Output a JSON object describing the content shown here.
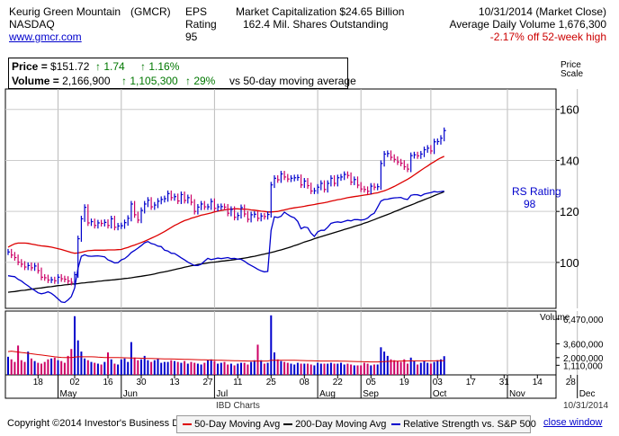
{
  "header": {
    "company": "Keurig Green Mountain",
    "ticker": "(GMCR)",
    "exchange": "NASDAQ",
    "website": "www.gmcr.com",
    "eps_label": "EPS",
    "eps_rating_label": "Rating",
    "eps_rating_value": "95",
    "market_cap": "Market Capitalization $24.65 Billion",
    "shares": "162.4 Mil. Shares Outstanding",
    "date": "10/31/2014 (Market Close)",
    "avg_volume": "Average Daily Volume 1,676,300",
    "off_high": "-2.17% off 52-week high"
  },
  "quote": {
    "price_label": "Price = ",
    "price_value": "$151.72",
    "price_change": "↑ 1.74",
    "price_pct": "↑ 1.16%",
    "volume_label": "Volume = ",
    "volume_value": "2,166,900",
    "volume_change": "↑ 1,105,300",
    "volume_pct": "↑ 29%",
    "volume_note": "vs 50-day moving average"
  },
  "footer": {
    "source": "IBD Charts",
    "date": "10/31/2014",
    "copyright": "Copyright ©2014 Investor's Business Daily",
    "legend": [
      {
        "label": "50-Day Moving Avg",
        "color": "#dd0000"
      },
      {
        "label": "200-Day Moving Avg",
        "color": "#000000"
      },
      {
        "label": "Relative Strength vs. S&P 500",
        "color": "#0000cc"
      }
    ],
    "close_label": "close window"
  },
  "chart_data": {
    "type": "line",
    "title": "",
    "price_axis_label": [
      "Price",
      "Scale"
    ],
    "volume_axis_label": "Volume",
    "rs_label": "RS Rating",
    "rs_value": "98",
    "y_ticks": [
      100,
      120,
      140,
      160
    ],
    "ylim": [
      82,
      168
    ],
    "volume_ticks": [
      "6,470,000",
      "3,600,000",
      "2,000,000",
      "1,110,000"
    ],
    "volume_tick_values": [
      6470000,
      3600000,
      2000000,
      1110000
    ],
    "volume_max": 7400000,
    "x_labels": [
      {
        "label": "18",
        "month": "",
        "i": 9
      },
      {
        "label": "May",
        "month": "May",
        "i": 15
      },
      {
        "label": "02",
        "month": "",
        "i": 20
      },
      {
        "label": "16",
        "month": "",
        "i": 30
      },
      {
        "label": "Jun",
        "month": "Jun",
        "i": 34
      },
      {
        "label": "30",
        "month": "",
        "i": 40
      },
      {
        "label": "13",
        "month": "",
        "i": 50
      },
      {
        "label": "27",
        "month": "",
        "i": 60
      },
      {
        "label": "Jul",
        "month": "Jul",
        "i": 62
      },
      {
        "label": "11",
        "month": "",
        "i": 69
      },
      {
        "label": "25",
        "month": "",
        "i": 79
      },
      {
        "label": "08",
        "month": "",
        "i": 89
      },
      {
        "label": "Aug",
        "month": "Aug",
        "i": 93
      },
      {
        "label": "22",
        "month": "",
        "i": 99
      },
      {
        "label": "Sep",
        "month": "Sep",
        "i": 106
      },
      {
        "label": "05",
        "month": "",
        "i": 109
      },
      {
        "label": "19",
        "month": "",
        "i": 119
      },
      {
        "label": "Oct",
        "month": "Oct",
        "i": 127
      },
      {
        "label": "03",
        "month": "",
        "i": 129
      },
      {
        "label": "17",
        "month": "",
        "i": 139
      },
      {
        "label": "31",
        "month": "",
        "i": 149
      },
      {
        "label": "Nov",
        "month": "Nov",
        "i": 150
      },
      {
        "label": "14",
        "month": "",
        "i": 159
      },
      {
        "label": "28",
        "month": "",
        "i": 169
      },
      {
        "label": "Dec",
        "month": "Dec",
        "i": 171
      }
    ],
    "close": [
      104.1,
      102.9,
      101.9,
      100.1,
      99.3,
      98.2,
      98.8,
      97.9,
      98.6,
      96.8,
      94.2,
      94.0,
      93.1,
      93.2,
      92.8,
      94.2,
      93.6,
      93.4,
      92.7,
      92.2,
      95.2,
      109.3,
      117.1,
      121.6,
      115.5,
      116.0,
      114.5,
      115.5,
      115.3,
      115.7,
      114.5,
      117.1,
      113.8,
      114.3,
      114.4,
      115.6,
      117.3,
      122.9,
      118.7,
      116.6,
      120.4,
      122.9,
      124.4,
      121.8,
      122.5,
      124.0,
      124.7,
      125.0,
      127.0,
      125.4,
      125.8,
      124.1,
      126.6,
      124.3,
      125.4,
      123.6,
      120.0,
      121.7,
      122.9,
      121.8,
      121.8,
      123.9,
      121.2,
      121.8,
      121.9,
      121.7,
      119.3,
      120.8,
      117.7,
      118.4,
      121.5,
      119.0,
      116.9,
      118.7,
      118.9,
      117.3,
      118.2,
      118.0,
      118.8,
      130.4,
      133.0,
      132.4,
      134.7,
      133.5,
      132.7,
      133.0,
      133.2,
      133.3,
      130.4,
      131.9,
      130.1,
      128.0,
      128.1,
      129.5,
      131.0,
      128.6,
      131.0,
      133.0,
      131.0,
      133.2,
      133.5,
      134.5,
      134.1,
      131.5,
      132.5,
      130.3,
      128.8,
      128.6,
      127.9,
      129.9,
      129.5,
      129.7,
      138.8,
      142.5,
      142.7,
      141.2,
      140.4,
      139.4,
      138.9,
      137.5,
      136.6,
      141.9,
      142.2,
      141.8,
      142.5,
      144.2,
      144.8,
      143.7,
      147.3,
      147.4,
      148.7,
      151.7
    ],
    "ma50": [
      106.0,
      106.7,
      107.3,
      107.6,
      107.6,
      107.6,
      107.5,
      107.2,
      107.0,
      106.7,
      106.5,
      106.4,
      106.2,
      106.0,
      105.7,
      105.4,
      105.1,
      104.7,
      104.3,
      103.9,
      103.6,
      103.7,
      104.0,
      104.3,
      104.6,
      104.7,
      104.8,
      104.8,
      104.8,
      104.8,
      104.9,
      104.9,
      104.9,
      105.0,
      105.1,
      105.5,
      105.9,
      106.4,
      106.8,
      107.3,
      107.8,
      108.3,
      108.9,
      109.5,
      110.1,
      110.7,
      111.4,
      112.1,
      112.9,
      113.7,
      114.5,
      115.1,
      115.8,
      116.4,
      116.8,
      117.3,
      117.7,
      118.1,
      118.5,
      118.8,
      119.1,
      119.4,
      119.8,
      120.1,
      120.4,
      120.6,
      120.8,
      120.9,
      121.0,
      121.0,
      120.9,
      120.9,
      120.8,
      120.6,
      120.5,
      120.3,
      120.1,
      120.0,
      119.8,
      119.8,
      119.9,
      120.0,
      120.3,
      120.6,
      120.9,
      121.2,
      121.4,
      121.6,
      121.8,
      122.0,
      122.3,
      122.5,
      122.7,
      123.0,
      123.2,
      123.4,
      123.7,
      124.0,
      124.3,
      124.6,
      124.8,
      125.1,
      125.4,
      125.6,
      125.8,
      126.0,
      126.2,
      126.4,
      126.6,
      126.8,
      127.1,
      127.3,
      127.7,
      128.1,
      128.6,
      129.2,
      129.8,
      130.5,
      131.2,
      131.9,
      132.6,
      133.4,
      134.3,
      135.2,
      136.1,
      137.0,
      137.8,
      138.7,
      139.5,
      140.3,
      141.0,
      141.6
    ],
    "ma200": [
      88.3,
      88.5,
      88.6,
      88.8,
      89.0,
      89.1,
      89.3,
      89.5,
      89.7,
      89.9,
      90.0,
      90.2,
      90.4,
      90.5,
      90.7,
      90.9,
      91.0,
      91.2,
      91.3,
      91.5,
      91.6,
      91.7,
      91.9,
      92.0,
      92.2,
      92.3,
      92.4,
      92.6,
      92.7,
      92.9,
      93.0,
      93.1,
      93.2,
      93.4,
      93.5,
      93.7,
      93.8,
      94.0,
      94.2,
      94.4,
      94.6,
      94.8,
      95.0,
      95.2,
      95.5,
      95.8,
      96.1,
      96.3,
      96.6,
      96.9,
      97.2,
      97.5,
      97.8,
      98.1,
      98.4,
      98.7,
      98.9,
      99.2,
      99.4,
      99.6,
      99.8,
      100.0,
      100.1,
      100.3,
      100.5,
      100.6,
      100.8,
      100.9,
      101.1,
      101.3,
      101.5,
      101.7,
      101.9,
      102.2,
      102.4,
      102.7,
      103.0,
      103.3,
      103.6,
      103.9,
      104.2,
      104.6,
      104.9,
      105.3,
      105.7,
      106.1,
      106.6,
      107.0,
      107.5,
      108.0,
      108.4,
      108.8,
      109.3,
      109.7,
      110.1,
      110.5,
      110.9,
      111.3,
      111.7,
      112.1,
      112.5,
      112.9,
      113.3,
      113.7,
      114.1,
      114.5,
      114.9,
      115.4,
      115.8,
      116.3,
      116.8,
      117.3,
      117.8,
      118.3,
      118.8,
      119.3,
      119.9,
      120.4,
      120.9,
      121.5,
      122.0,
      122.5,
      123.0,
      123.6,
      124.1,
      124.6,
      125.1,
      125.6,
      126.2,
      126.7,
      127.2,
      127.7
    ],
    "rs": [
      94.8,
      94.6,
      94.4,
      93.4,
      92.7,
      91.7,
      90.8,
      89.8,
      89.0,
      88.1,
      87.7,
      88.0,
      88.5,
      87.9,
      86.9,
      85.7,
      84.5,
      84.3,
      85.3,
      86.6,
      90.0,
      97.7,
      102.4,
      103.0,
      102.5,
      102.4,
      102.5,
      102.6,
      102.4,
      102.2,
      101.0,
      100.5,
      99.8,
      99.9,
      101.0,
      101.5,
      102.5,
      103.9,
      104.7,
      105.6,
      106.6,
      107.7,
      108.2,
      107.4,
      107.1,
      106.4,
      106.2,
      104.8,
      104.5,
      103.6,
      103.5,
      102.7,
      101.8,
      101.0,
      100.1,
      99.4,
      98.8,
      98.8,
      99.3,
      100.5,
      101.6,
      101.1,
      101.4,
      101.7,
      101.5,
      101.7,
      101.9,
      101.5,
      101.6,
      101.3,
      101.2,
      100.5,
      99.5,
      98.8,
      98.1,
      97.3,
      96.7,
      96.3,
      96.5,
      112.6,
      117.9,
      117.6,
      118.1,
      119.7,
      118.8,
      118.0,
      117.5,
      116.1,
      113.2,
      113.9,
      113.6,
      111.5,
      110.2,
      112.0,
      112.6,
      112.6,
      113.8,
      115.3,
      115.7,
      115.9,
      115.7,
      116.1,
      116.5,
      116.3,
      116.8,
      116.8,
      116.6,
      116.8,
      117.4,
      118.6,
      119.3,
      121.7,
      124.1,
      124.7,
      124.8,
      125.1,
      125.3,
      125.4,
      125.5,
      124.9,
      124.7,
      126.3,
      126.6,
      126.5,
      126.1,
      126.8,
      127.1,
      127.4,
      127.8,
      127.6,
      127.8,
      128.0
    ],
    "volume": [
      2100000,
      1800000,
      1500000,
      3400000,
      1700000,
      1500000,
      2700000,
      1900000,
      1600000,
      1400000,
      1300000,
      1500000,
      1800000,
      1900000,
      2000000,
      1700000,
      1600000,
      1400000,
      2200000,
      3000000,
      6800000,
      4000000,
      2700000,
      1900000,
      1700000,
      1500000,
      1400000,
      1300000,
      1200000,
      1500000,
      2600000,
      1800000,
      1300000,
      1200000,
      1800000,
      1900000,
      1500000,
      3800000,
      2000000,
      1700000,
      1800000,
      2200000,
      1700000,
      1500000,
      1700000,
      1900000,
      1400000,
      1500000,
      1500000,
      1700000,
      1600000,
      1500000,
      1400000,
      1600000,
      1300000,
      1500000,
      1400000,
      1300000,
      1200000,
      1400000,
      1700000,
      1800000,
      1600000,
      1300000,
      1400000,
      1500000,
      1200000,
      1300000,
      1100000,
      1300000,
      1400000,
      1400000,
      1200000,
      1500000,
      1700000,
      3500000,
      1700000,
      1300000,
      1400000,
      6900000,
      2600000,
      1800000,
      1600000,
      1500000,
      1400000,
      1300000,
      1200000,
      1400000,
      1300000,
      1300000,
      1300000,
      1200000,
      1100000,
      1400000,
      1300000,
      1300000,
      1300000,
      1400000,
      1300000,
      1300000,
      1400000,
      1200000,
      1300000,
      1200000,
      1100000,
      1100000,
      1100000,
      1400000,
      1300000,
      1100000,
      1200000,
      1200000,
      3200000,
      2700000,
      2200000,
      1800000,
      1700000,
      1600000,
      1500000,
      1800000,
      1300000,
      2000000,
      1600000,
      1200000,
      1400000,
      1600000,
      1400000,
      1300000,
      1500000,
      1700000,
      1800000,
      2166900
    ],
    "volume_ma": [
      2700000,
      2750000,
      2700000,
      2650000,
      2600000,
      2550000,
      2500000,
      2450000,
      2400000,
      2350000,
      2300000,
      2250000,
      2200000,
      2150000,
      2100000,
      2050000,
      2020000,
      2000000,
      2000000,
      2000000,
      2050000,
      2100000,
      2100000,
      2100000,
      2100000,
      2100000,
      2080000,
      2050000,
      2030000,
      2000000,
      2000000,
      2000000,
      2000000,
      2000000,
      1990000,
      1980000,
      1970000,
      1960000,
      1950000,
      1940000,
      1930000,
      1920000,
      1910000,
      1900000,
      1890000,
      1880000,
      1870000,
      1860000,
      1850000,
      1840000,
      1830000,
      1820000,
      1810000,
      1800000,
      1790000,
      1780000,
      1770000,
      1760000,
      1750000,
      1740000,
      1730000,
      1720000,
      1710000,
      1700000,
      1690000,
      1680000,
      1670000,
      1660000,
      1650000,
      1640000,
      1630000,
      1620000,
      1610000,
      1600000,
      1600000,
      1600000,
      1600000,
      1600000,
      1600000,
      1700000,
      1700000,
      1700000,
      1700000,
      1700000,
      1700000,
      1700000,
      1690000,
      1680000,
      1670000,
      1660000,
      1650000,
      1640000,
      1630000,
      1620000,
      1610000,
      1600000,
      1600000,
      1600000,
      1600000,
      1600000,
      1590000,
      1580000,
      1570000,
      1560000,
      1550000,
      1540000,
      1530000,
      1520000,
      1510000,
      1500000,
      1500000,
      1500000,
      1520000,
      1540000,
      1560000,
      1570000,
      1580000,
      1590000,
      1600000,
      1610000,
      1620000,
      1630000,
      1630000,
      1630000,
      1630000,
      1630000,
      1630000,
      1630000,
      1630000,
      1640000,
      1650000,
      1660000
    ]
  }
}
